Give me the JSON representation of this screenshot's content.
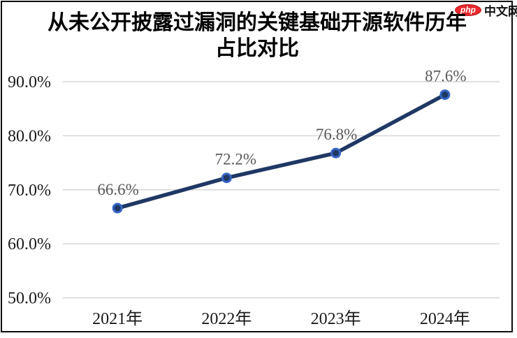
{
  "logo": {
    "badge": "php",
    "text": "中文网"
  },
  "chart_data": {
    "type": "line",
    "title": "从未公开披露过漏洞的关键基础开源软件历年占比对比",
    "title_lines": [
      "从未公开披露过漏洞的关键基础开源软件历年",
      "占比对比"
    ],
    "categories": [
      "2021年",
      "2022年",
      "2023年",
      "2024年"
    ],
    "values": [
      66.6,
      72.2,
      76.8,
      87.6
    ],
    "data_labels": [
      "66.6%",
      "72.2%",
      "76.8%",
      "87.6%"
    ],
    "ylim": [
      50,
      90
    ],
    "ytick_step": 10,
    "ytick_labels": [
      "50.0%",
      "60.0%",
      "70.0%",
      "80.0%",
      "90.0%"
    ],
    "grid": true,
    "legend": "none",
    "colors": {
      "line": "#1f3864",
      "marker_fill": "#1f3864",
      "marker_ring": "#3565c4",
      "grid": "#d6d6d6",
      "tick_label": "#1a1a1a",
      "data_label": "#595959"
    }
  }
}
